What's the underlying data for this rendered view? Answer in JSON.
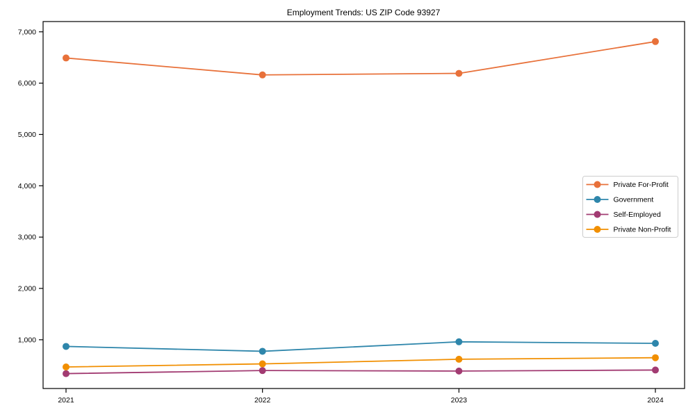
{
  "figure": {
    "background": "#ffffff"
  },
  "chart_data": {
    "type": "line",
    "title": "Employment Trends: US ZIP Code 93927",
    "categories": [
      "2021",
      "2022",
      "2023",
      "2024"
    ],
    "series": [
      {
        "name": "Private For-Profit",
        "color": "#E8713A",
        "values": [
          6490,
          6160,
          6190,
          6810
        ]
      },
      {
        "name": "Government",
        "color": "#2E86AB",
        "values": [
          870,
          775,
          960,
          930
        ]
      },
      {
        "name": "Self-Employed",
        "color": "#A23B72",
        "values": [
          340,
          400,
          390,
          410
        ]
      },
      {
        "name": "Private Non-Profit",
        "color": "#F18F01",
        "values": [
          470,
          530,
          620,
          650
        ]
      }
    ],
    "xlabel": "",
    "ylabel": "",
    "ylim": [
      50,
      7200
    ],
    "y_ticks": [
      {
        "value": 1000,
        "label": "1,000"
      },
      {
        "value": 2000,
        "label": "2,000"
      },
      {
        "value": 3000,
        "label": "3,000"
      },
      {
        "value": 4000,
        "label": "4,000"
      },
      {
        "value": 5000,
        "label": "5,000"
      },
      {
        "value": 6000,
        "label": "6,000"
      },
      {
        "value": 7000,
        "label": "7,000"
      }
    ],
    "grid": false,
    "legend_position": "center-right",
    "marker": "circle",
    "axis_color": "#000000",
    "legend_border_color": "#cccccc",
    "legend_background": "#ffffff"
  }
}
